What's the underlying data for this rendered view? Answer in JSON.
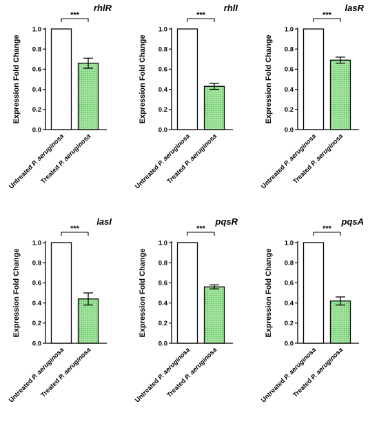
{
  "colors": {
    "untreated_fill": "#ffffff",
    "treated_fill": "#a8e6a3",
    "treated_dots": "#3cb043",
    "stroke": "#000000"
  },
  "chart_data": [
    {
      "type": "bar",
      "title": "rhlR",
      "ylabel": "Expression Fold Change",
      "ylim": [
        0,
        1.0
      ],
      "yticks": [
        "0.0",
        "0.2",
        "0.4",
        "0.6",
        "0.8",
        "1.0"
      ],
      "categories": [
        "Untreated P. aeruginosa",
        "Treated P. aeruginosa"
      ],
      "values": [
        1.0,
        0.66
      ],
      "errors": [
        0.0,
        0.05
      ],
      "significance": "***"
    },
    {
      "type": "bar",
      "title": "rhlI",
      "ylabel": "Expression Fold Change",
      "ylim": [
        0,
        1.0
      ],
      "yticks": [
        "0.0",
        "0.2",
        "0.4",
        "0.6",
        "0.8",
        "1.0"
      ],
      "categories": [
        "Untreated P. aeruginosa",
        "Treated P. aeruginosa"
      ],
      "values": [
        1.0,
        0.43
      ],
      "errors": [
        0.0,
        0.03
      ],
      "significance": "***"
    },
    {
      "type": "bar",
      "title": "lasR",
      "ylabel": "Expression Fold Change",
      "ylim": [
        0,
        1.0
      ],
      "yticks": [
        "0.0",
        "0.2",
        "0.4",
        "0.6",
        "0.8",
        "1.0"
      ],
      "categories": [
        "Untreated P. aeruginosa",
        "Treated P. aeruginosa"
      ],
      "values": [
        1.0,
        0.69
      ],
      "errors": [
        0.0,
        0.03
      ],
      "significance": "***"
    },
    {
      "type": "bar",
      "title": "lasI",
      "ylabel": "Expression Fold Change",
      "ylim": [
        0,
        1.0
      ],
      "yticks": [
        "0.0",
        "0.2",
        "0.4",
        "0.6",
        "0.8",
        "1.0"
      ],
      "categories": [
        "Untreated P. aeruginosa",
        "Treated P. aeruginosa"
      ],
      "values": [
        1.0,
        0.44
      ],
      "errors": [
        0.0,
        0.06
      ],
      "significance": "***"
    },
    {
      "type": "bar",
      "title": "pqsR",
      "ylabel": "Expression Fold Change",
      "ylim": [
        0,
        1.0
      ],
      "yticks": [
        "0.0",
        "0.2",
        "0.4",
        "0.6",
        "0.8",
        "1.0"
      ],
      "categories": [
        "Untreated P. aeruginosa",
        "Treated P. aeruginosa"
      ],
      "values": [
        1.0,
        0.56
      ],
      "errors": [
        0.0,
        0.02
      ],
      "significance": "***"
    },
    {
      "type": "bar",
      "title": "pqsA",
      "ylabel": "Expression Fold Change",
      "ylim": [
        0,
        1.0
      ],
      "yticks": [
        "0.0",
        "0.2",
        "0.4",
        "0.6",
        "0.8",
        "1.0"
      ],
      "categories": [
        "Untreated P. aeruginosa",
        "Treated P. aeruginosa"
      ],
      "values": [
        1.0,
        0.42
      ],
      "errors": [
        0.0,
        0.04
      ],
      "significance": "***"
    }
  ]
}
